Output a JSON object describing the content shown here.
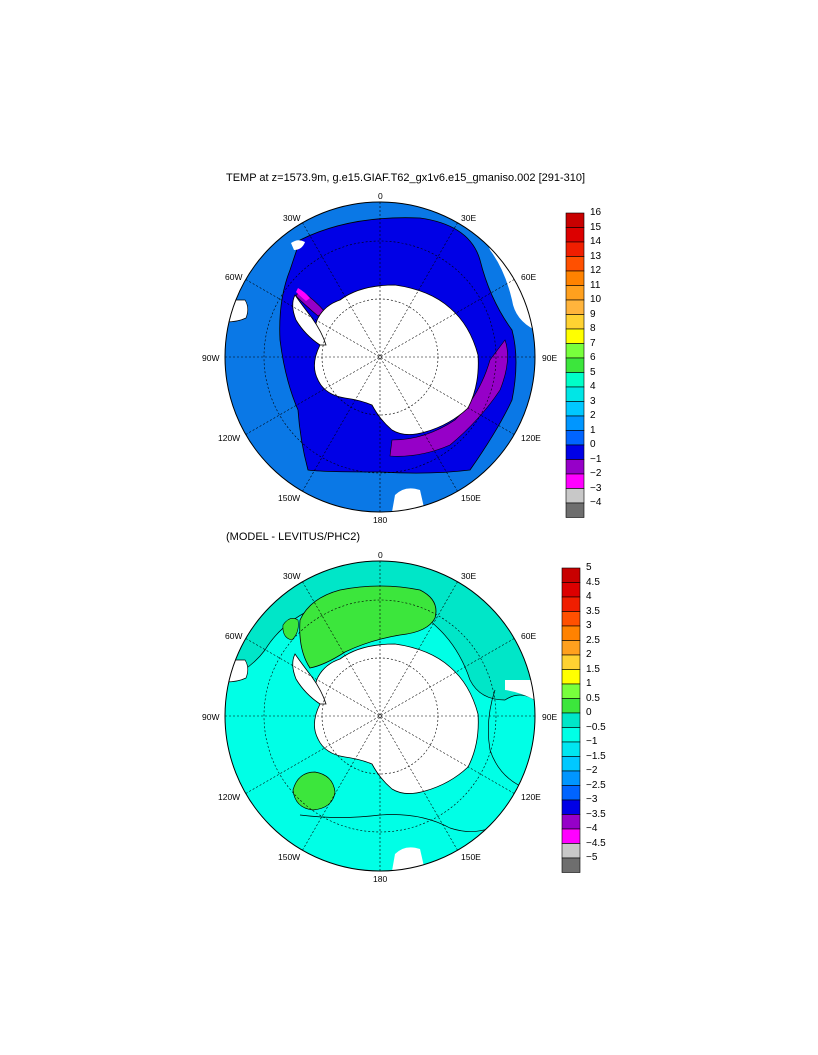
{
  "top_panel": {
    "title": "TEMP at z=1573.9m, g.e15.GIAF.T62_gx1v6.e15_gmaniso.002 [291-310]",
    "lon_labels": [
      "0",
      "30E",
      "60E",
      "90E",
      "120E",
      "150E",
      "180",
      "150W",
      "120W",
      "90W",
      "60W",
      "30W"
    ],
    "colorbar": {
      "levels": [
        "16",
        "15",
        "14",
        "13",
        "12",
        "11",
        "10",
        "9",
        "8",
        "7",
        "6",
        "5",
        "4",
        "3",
        "2",
        "1",
        "0",
        "−1",
        "−2",
        "−3",
        "−4"
      ],
      "colors": [
        "#c80000",
        "#dc0000",
        "#f01e00",
        "#ff5000",
        "#ff8200",
        "#ffa01e",
        "#ffb43c",
        "#ffd232",
        "#ffff00",
        "#78ff3c",
        "#3ce63c",
        "#00ffc8",
        "#00e6e6",
        "#00c8ff",
        "#0096ff",
        "#0064ff",
        "#0000e6",
        "#9600c8",
        "#ff00ff",
        "#c8c8c8",
        "#6e6e6e"
      ]
    },
    "region_colors": {
      "ocean_main": "#0a78e6",
      "south_band": "#0000e6",
      "shelf": "#9600c8",
      "shelf_edge": "#ff00ff",
      "land": "#ffffff"
    }
  },
  "bottom_panel": {
    "title": "(MODEL - LEVITUS/PHC2)",
    "lon_labels": [
      "0",
      "30E",
      "60E",
      "90E",
      "120E",
      "150E",
      "180",
      "150W",
      "120W",
      "90W",
      "60W",
      "30W"
    ],
    "colorbar": {
      "levels": [
        "5",
        "4.5",
        "4",
        "3.5",
        "3",
        "2.5",
        "2",
        "1.5",
        "1",
        "0.5",
        "0",
        "−0.5",
        "−1",
        "−1.5",
        "−2",
        "−2.5",
        "−3",
        "−3.5",
        "−4",
        "−4.5",
        "−5"
      ],
      "colors": [
        "#c80000",
        "#dc0000",
        "#f01e00",
        "#ff5000",
        "#ff8200",
        "#ffa01e",
        "#ffd232",
        "#ffff00",
        "#78ff3c",
        "#3ce63c",
        "#00e6c8",
        "#00ffe6",
        "#00e6f0",
        "#00c8ff",
        "#0096ff",
        "#0064ff",
        "#0000e6",
        "#9600c8",
        "#ff00ff",
        "#c8c8c8",
        "#6e6e6e"
      ]
    },
    "region_colors": {
      "ocean_main": "#00ffe6",
      "ocean_north": "#00e6c8",
      "positive": "#3ce63c",
      "land": "#ffffff"
    }
  }
}
